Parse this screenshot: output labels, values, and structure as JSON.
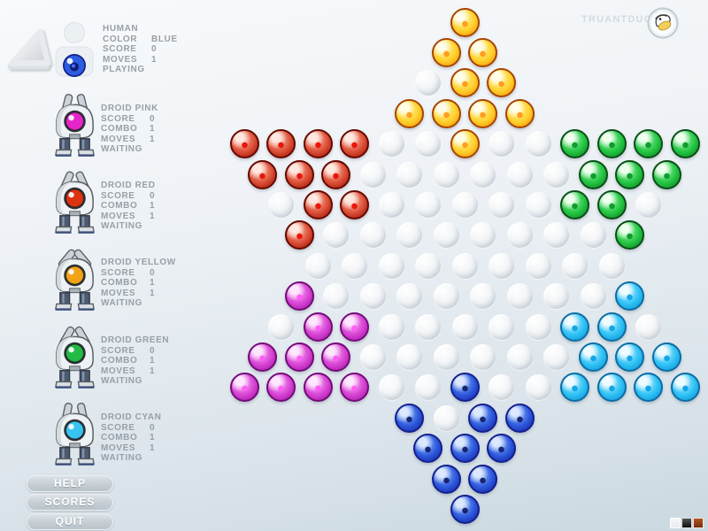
{
  "logo": {
    "text": "TRUANTDUCK"
  },
  "players": [
    {
      "name": "HUMAN",
      "type": "human",
      "eye_color": "#2b5de2",
      "stats": [
        {
          "label": "COLOR",
          "value": "BLUE"
        },
        {
          "label": "SCORE",
          "value": "0"
        },
        {
          "label": "MOVES",
          "value": "1"
        }
      ],
      "status": "PLAYING"
    },
    {
      "name": "DROID PINK",
      "type": "droid",
      "eye_color": "#e625c8",
      "stats": [
        {
          "label": "SCORE",
          "value": "0"
        },
        {
          "label": "COMBO",
          "value": "1"
        },
        {
          "label": "MOVES",
          "value": "1"
        }
      ],
      "status": "WAITING"
    },
    {
      "name": "DROID RED",
      "type": "droid",
      "eye_color": "#dd3312",
      "stats": [
        {
          "label": "SCORE",
          "value": "0"
        },
        {
          "label": "COMBO",
          "value": "1"
        },
        {
          "label": "MOVES",
          "value": "1"
        }
      ],
      "status": "WAITING"
    },
    {
      "name": "DROID YELLOW",
      "type": "droid",
      "eye_color": "#f2a318",
      "stats": [
        {
          "label": "SCORE",
          "value": "0"
        },
        {
          "label": "COMBO",
          "value": "1"
        },
        {
          "label": "MOVES",
          "value": "1"
        }
      ],
      "status": "WAITING"
    },
    {
      "name": "DROID GREEN",
      "type": "droid",
      "eye_color": "#23bb44",
      "stats": [
        {
          "label": "SCORE",
          "value": "0"
        },
        {
          "label": "COMBO",
          "value": "1"
        },
        {
          "label": "MOVES",
          "value": "1"
        }
      ],
      "status": "WAITING"
    },
    {
      "name": "DROID CYAN",
      "type": "droid",
      "eye_color": "#38c4ee",
      "stats": [
        {
          "label": "SCORE",
          "value": "0"
        },
        {
          "label": "COMBO",
          "value": "1"
        },
        {
          "label": "MOVES",
          "value": "1"
        }
      ],
      "status": "WAITING"
    }
  ],
  "buttons": [
    {
      "label": "HELP"
    },
    {
      "label": "SCORES"
    },
    {
      "label": "QUIT"
    }
  ],
  "swatches": [
    {
      "name": "white",
      "color_top": "#f5f8fa",
      "color_bottom": "#e7ebef"
    },
    {
      "name": "black",
      "color_top": "#555555",
      "color_bottom": "#0d0d0d"
    },
    {
      "name": "rust",
      "color_top": "#b2541f",
      "color_bottom": "#74300f"
    }
  ],
  "board": {
    "row_lengths": [
      1,
      2,
      3,
      4,
      13,
      12,
      11,
      10,
      9,
      10,
      11,
      12,
      13,
      4,
      3,
      2,
      1
    ],
    "pieces": [
      {
        "color": "yellow",
        "cells": [
          [
            1,
            0
          ],
          [
            2,
            0
          ],
          [
            2,
            1
          ],
          [
            3,
            1
          ],
          [
            3,
            2
          ],
          [
            4,
            0
          ],
          [
            4,
            1
          ],
          [
            4,
            2
          ],
          [
            4,
            3
          ],
          [
            5,
            6
          ]
        ]
      },
      {
        "color": "red",
        "cells": [
          [
            5,
            0
          ],
          [
            5,
            1
          ],
          [
            5,
            2
          ],
          [
            5,
            3
          ],
          [
            6,
            0
          ],
          [
            6,
            1
          ],
          [
            6,
            2
          ],
          [
            7,
            1
          ],
          [
            7,
            2
          ],
          [
            8,
            0
          ]
        ]
      },
      {
        "color": "green",
        "cells": [
          [
            5,
            9
          ],
          [
            5,
            10
          ],
          [
            5,
            11
          ],
          [
            5,
            12
          ],
          [
            6,
            9
          ],
          [
            6,
            10
          ],
          [
            6,
            11
          ],
          [
            7,
            8
          ],
          [
            7,
            9
          ],
          [
            8,
            9
          ]
        ]
      },
      {
        "color": "magenta",
        "cells": [
          [
            10,
            0
          ],
          [
            11,
            1
          ],
          [
            11,
            2
          ],
          [
            12,
            0
          ],
          [
            12,
            1
          ],
          [
            12,
            2
          ],
          [
            13,
            0
          ],
          [
            13,
            1
          ],
          [
            13,
            2
          ],
          [
            13,
            3
          ]
        ]
      },
      {
        "color": "cyan",
        "cells": [
          [
            10,
            9
          ],
          [
            11,
            8
          ],
          [
            11,
            9
          ],
          [
            12,
            9
          ],
          [
            12,
            10
          ],
          [
            12,
            11
          ],
          [
            13,
            9
          ],
          [
            13,
            10
          ],
          [
            13,
            11
          ],
          [
            13,
            12
          ]
        ]
      },
      {
        "color": "blue",
        "cells": [
          [
            13,
            6
          ],
          [
            14,
            0
          ],
          [
            14,
            2
          ],
          [
            14,
            3
          ],
          [
            15,
            0
          ],
          [
            15,
            1
          ],
          [
            15,
            2
          ],
          [
            16,
            0
          ],
          [
            16,
            1
          ],
          [
            17,
            0
          ]
        ]
      }
    ],
    "marble_styles": {
      "yellow": {
        "ring": "#a84400",
        "light": "#fff095",
        "main": "#ffd22e",
        "dark": "#f18c00",
        "dot": "#ff9d1d",
        "hi": "#fffde8"
      },
      "red": {
        "ring": "#670800",
        "light": "#f5b5a2",
        "main": "#dd5038",
        "dark": "#991100",
        "dot": "#ea1508",
        "hi": "#ffe8e0"
      },
      "green": {
        "ring": "#0a4f16",
        "light": "#9aeeab",
        "main": "#25c744",
        "dark": "#0b7e20",
        "dot": "#0f9c2c",
        "hi": "#eeffee"
      },
      "magenta": {
        "ring": "#740b78",
        "light": "#f2a9f0",
        "main": "#d844d4",
        "dark": "#9c129e",
        "dot": "#ff5df5",
        "hi": "#ffe6ff"
      },
      "cyan": {
        "ring": "#0a6da6",
        "light": "#b5ecff",
        "main": "#2fc2f5",
        "dark": "#0b8fd0",
        "dot": "#12a5e5",
        "hi": "#f0fbff"
      },
      "blue": {
        "ring": "#13208f",
        "light": "#85b2f5",
        "main": "#2e59dd",
        "dark": "#12209a",
        "dot": "#17246f",
        "hi": "#dbe8ff"
      }
    }
  }
}
